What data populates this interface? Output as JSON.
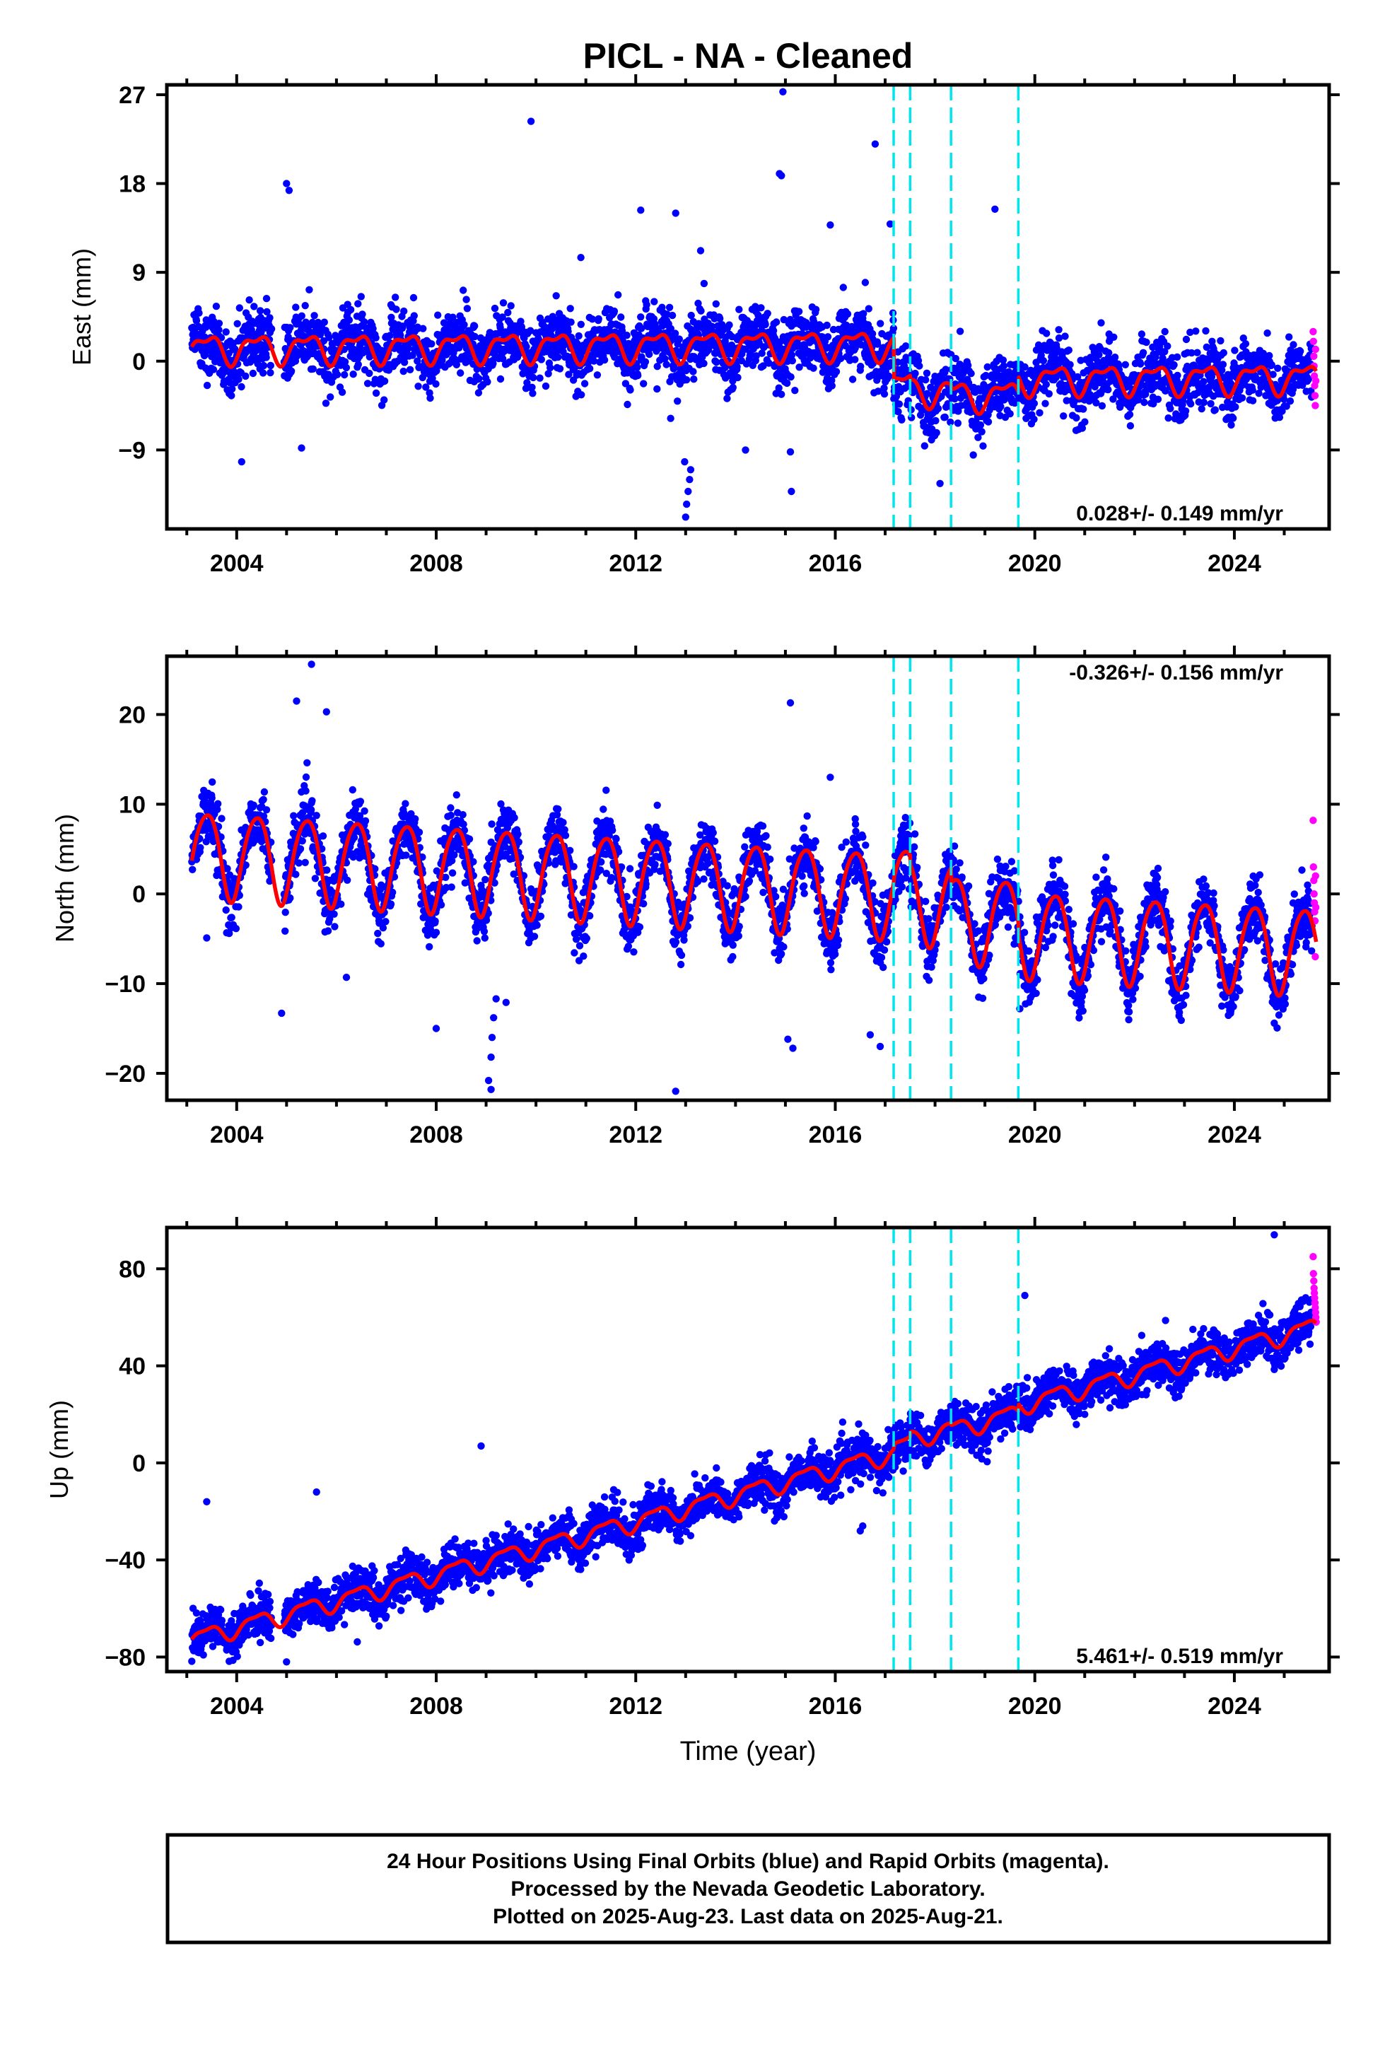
{
  "title": "PICL  - NA - Cleaned",
  "colors": {
    "final": "#0000ff",
    "rapid": "#ff00ff",
    "model": "#ff0000",
    "steps": "#00e5ee",
    "frame": "#000000"
  },
  "chart_data": {
    "type": "scatter",
    "x": {
      "ticks": [
        2004,
        2008,
        2012,
        2016,
        2020,
        2024
      ],
      "tick_labels": [
        "2004",
        "2008",
        "2012",
        "2016",
        "2020",
        "2024"
      ],
      "range": [
        2002.6,
        2025.9
      ],
      "label": "Time (year)"
    },
    "data_span": [
      2003.1,
      2025.64
    ],
    "last_final_data": 2025.56,
    "step_epochs": [
      2017.17,
      2017.5,
      2018.32,
      2019.67
    ],
    "panels": [
      {
        "id": "east",
        "ylabel": "East (mm)",
        "ylim": [
          -17,
          28
        ],
        "ticks": [
          27,
          18,
          9,
          0,
          -9
        ],
        "tick_labels": [
          "27",
          "18",
          "9",
          "0",
          "−9"
        ],
        "rate": "0.028+/- 0.149 mm/yr",
        "rate_position": "bottom-right",
        "model": {
          "rate_mm_yr": 0.028,
          "annual_amp": 1.3,
          "semiannual_amp": 0.6,
          "offsets": [
            {
              "epoch": 2017.17,
              "size": -4.2
            },
            {
              "epoch": 2017.5,
              "size": -0.5
            },
            {
              "epoch": 2018.32,
              "size": -0.5
            },
            {
              "epoch": 2019.67,
              "size": 1.6
            }
          ]
        },
        "scatter_sd": 1.6,
        "outliers": [
          [
            2013.0,
            -15.8
          ],
          [
            2013.02,
            -14.5
          ],
          [
            2013.05,
            -13.2
          ],
          [
            2013.08,
            -12.0
          ],
          [
            2013.1,
            -11.0
          ],
          [
            2012.98,
            -10.2
          ],
          [
            2014.95,
            27.3
          ],
          [
            2014.88,
            19.0
          ],
          [
            2014.92,
            18.8
          ],
          [
            2009.9,
            24.3
          ],
          [
            2012.1,
            15.3
          ],
          [
            2012.8,
            15.0
          ],
          [
            2019.2,
            15.4
          ],
          [
            2016.8,
            22.0
          ],
          [
            2017.1,
            13.9
          ],
          [
            2005.0,
            18.0
          ],
          [
            2005.05,
            17.3
          ],
          [
            2015.12,
            -13.2
          ],
          [
            2018.1,
            -12.4
          ],
          [
            2012.7,
            -5.8
          ],
          [
            2004.1,
            -10.2
          ],
          [
            2005.3,
            -8.8
          ],
          [
            2015.1,
            -9.2
          ],
          [
            2014.2,
            -9.0
          ],
          [
            2015.9,
            13.8
          ],
          [
            2013.3,
            11.2
          ],
          [
            2010.9,
            10.5
          ]
        ],
        "rapid_values": [
          3.0,
          2.0,
          0.5,
          -0.5,
          -1.5,
          -2.5,
          -3.5,
          -4.5,
          1.2,
          -2.0
        ]
      },
      {
        "id": "north",
        "ylabel": "North (mm)",
        "ylim": [
          -23,
          26.5
        ],
        "ticks": [
          20,
          10,
          0,
          -10,
          -20
        ],
        "tick_labels": [
          "20",
          "10",
          "0",
          "−10",
          "−20"
        ],
        "rate": "-0.326+/- 0.156 mm/yr",
        "rate_position": "top-right",
        "model": {
          "rate_mm_yr": -0.326,
          "annual_amp": 4.8,
          "semiannual_amp": 0.6,
          "offsets": [
            {
              "epoch": 2017.17,
              "size": 0.5
            },
            {
              "epoch": 2017.5,
              "size": -1.0
            },
            {
              "epoch": 2018.32,
              "size": -1.8
            },
            {
              "epoch": 2019.67,
              "size": -1.2
            }
          ]
        },
        "scatter_sd": 1.7,
        "outliers": [
          [
            2005.5,
            25.6
          ],
          [
            2005.2,
            21.5
          ],
          [
            2005.8,
            20.3
          ],
          [
            2015.1,
            21.3
          ],
          [
            2009.1,
            -21.8
          ],
          [
            2009.05,
            -20.8
          ],
          [
            2009.1,
            -18.2
          ],
          [
            2009.12,
            -16.0
          ],
          [
            2009.15,
            -13.8
          ],
          [
            2009.2,
            -11.7
          ],
          [
            2012.8,
            -22.0
          ],
          [
            2015.05,
            -16.2
          ],
          [
            2015.15,
            -17.2
          ],
          [
            2016.7,
            -15.7
          ],
          [
            2016.9,
            -17.0
          ],
          [
            2004.9,
            -13.3
          ],
          [
            2008.0,
            -15.0
          ],
          [
            2006.2,
            -9.3
          ],
          [
            2003.4,
            -4.9
          ],
          [
            2015.9,
            13.0
          ],
          [
            2019.7,
            -12.8
          ],
          [
            2009.4,
            -12.1
          ]
        ],
        "rapid_values": [
          8.2,
          3.0,
          1.5,
          0.0,
          -1.0,
          -2.0,
          -3.0,
          -7.0,
          2.0,
          -1.5
        ]
      },
      {
        "id": "up",
        "ylabel": "Up (mm)",
        "ylim": [
          -86,
          97
        ],
        "ticks": [
          80,
          40,
          0,
          -40,
          -80
        ],
        "tick_labels": [
          "80",
          "40",
          "0",
          "−40",
          "−80"
        ],
        "rate": "5.461+/- 0.519 mm/yr",
        "rate_position": "bottom-right",
        "model": {
          "rate_mm_yr": 5.461,
          "annual_amp": 3.5,
          "semiannual_amp": 1.2,
          "offsets": [
            {
              "epoch": 2017.17,
              "size": 2.0
            },
            {
              "epoch": 2017.5,
              "size": 2.0
            },
            {
              "epoch": 2018.32,
              "size": -1.0
            },
            {
              "epoch": 2019.67,
              "size": 3.0
            }
          ]
        },
        "scatter_sd": 4.5,
        "outliers": [
          [
            2003.4,
            -16.0
          ],
          [
            2005.6,
            -12.0
          ],
          [
            2008.9,
            7.0
          ],
          [
            2016.5,
            -28.0
          ],
          [
            2016.55,
            -26.0
          ],
          [
            2019.8,
            69.0
          ],
          [
            2024.8,
            94.0
          ],
          [
            2005.0,
            -82.0
          ],
          [
            2013.1,
            -30.0
          ],
          [
            2021.0,
            20.0
          ]
        ],
        "rapid_values": [
          85.0,
          78.0,
          75.0,
          72.0,
          70.0,
          68.0,
          66.0,
          64.0,
          62.0,
          60.0,
          58.0
        ]
      }
    ]
  },
  "footer": {
    "line1": "24 Hour Positions Using Final Orbits (blue) and Rapid Orbits (magenta).",
    "line2": "Processed by the Nevada Geodetic Laboratory.",
    "line3": "Plotted on 2025-Aug-23. Last data on 2025-Aug-21."
  }
}
